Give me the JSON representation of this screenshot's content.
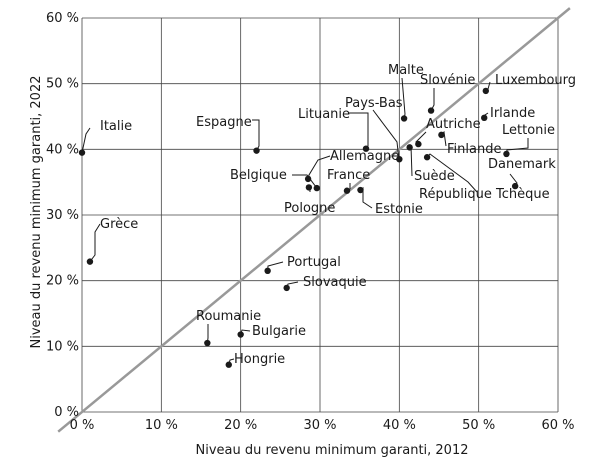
{
  "chart_data": {
    "type": "scatter",
    "xlabel": "Niveau du revenu minimum garanti, 2012",
    "ylabel": "Niveau du revenu minimum garanti, 2022",
    "xlim": [
      0,
      60
    ],
    "ylim": [
      0,
      60
    ],
    "x_ticks": [
      "0 %",
      "10 %",
      "20 %",
      "30 %",
      "40 %",
      "50 %",
      "60 %"
    ],
    "y_ticks": [
      "0 %",
      "10 %",
      "20 %",
      "30 %",
      "40 %",
      "50 %",
      "60 %"
    ],
    "grid": true,
    "reference_line": "diagonal y = x",
    "points": [
      {
        "label": "Italie",
        "x": 0,
        "y": 39.5
      },
      {
        "label": "Grèce",
        "x": 1.0,
        "y": 22.9
      },
      {
        "label": "Espagne",
        "x": 22.0,
        "y": 39.8
      },
      {
        "label": "Lituanie",
        "x": 35.8,
        "y": 40.1
      },
      {
        "label": "Pays-Bas",
        "x": 40.0,
        "y": 38.5
      },
      {
        "label": "Malte",
        "x": 40.6,
        "y": 44.7
      },
      {
        "label": "Slovénie",
        "x": 44.0,
        "y": 45.9
      },
      {
        "label": "Luxembourg",
        "x": 50.9,
        "y": 48.9
      },
      {
        "label": "Irlande",
        "x": 50.7,
        "y": 44.8
      },
      {
        "label": "Autriche",
        "x": 42.4,
        "y": 40.8
      },
      {
        "label": "Finlande",
        "x": 45.3,
        "y": 42.2
      },
      {
        "label": "Lettonie",
        "x": 53.5,
        "y": 39.3
      },
      {
        "label": "Suède",
        "x": 41.3,
        "y": 40.3
      },
      {
        "label": "Danemark",
        "x": 54.6,
        "y": 34.4
      },
      {
        "label": "République Tchèque",
        "x": 43.5,
        "y": 38.8
      },
      {
        "label": "Allemagne",
        "x": 28.5,
        "y": 35.5
      },
      {
        "label": "Belgique",
        "x": 29.6,
        "y": 34.1
      },
      {
        "label": "France",
        "x": 33.4,
        "y": 33.7
      },
      {
        "label": "Pologne",
        "x": 28.6,
        "y": 34.2
      },
      {
        "label": "Estonie",
        "x": 35.1,
        "y": 33.8
      },
      {
        "label": "Portugal",
        "x": 23.4,
        "y": 21.5
      },
      {
        "label": "Slovaquie",
        "x": 25.8,
        "y": 18.9
      },
      {
        "label": "Roumanie",
        "x": 15.8,
        "y": 10.5
      },
      {
        "label": "Bulgarie",
        "x": 20.0,
        "y": 11.8
      },
      {
        "label": "Hongrie",
        "x": 18.5,
        "y": 7.2
      }
    ]
  }
}
